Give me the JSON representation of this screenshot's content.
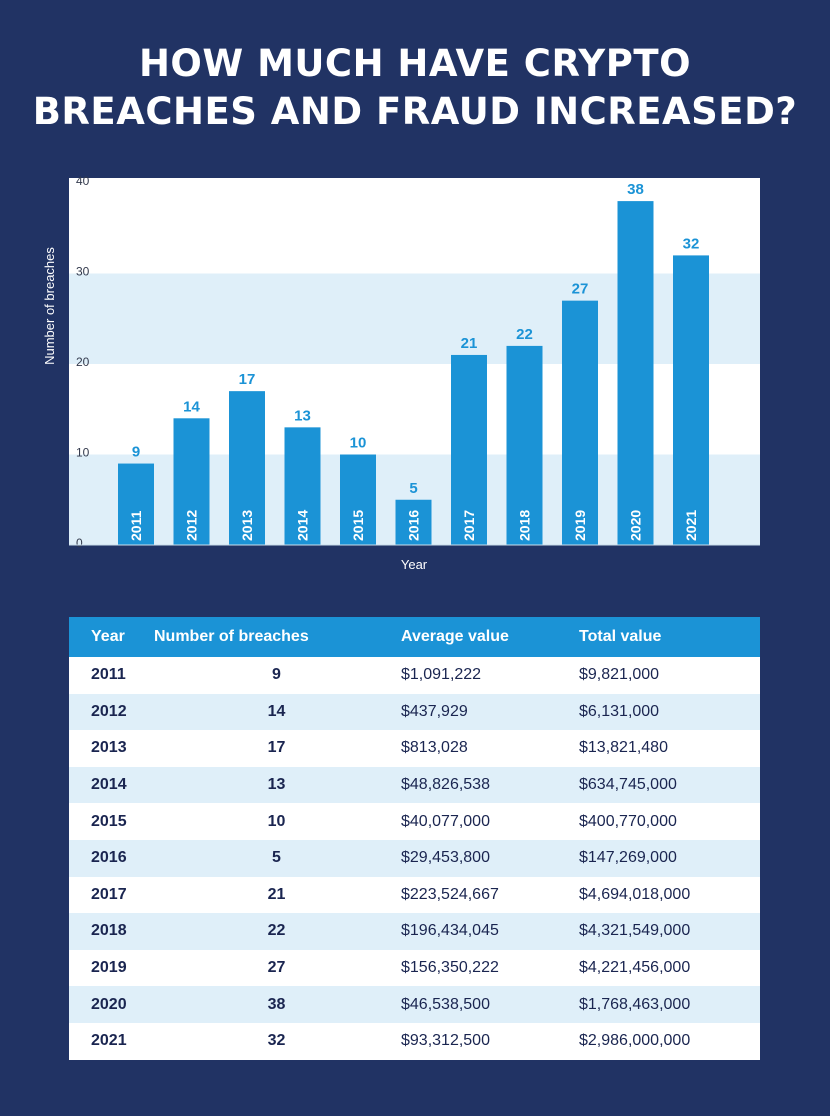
{
  "title_lines": [
    "HOW MUCH HAVE CRYPTO",
    "BREACHES AND FRAUD INCREASED?"
  ],
  "colors": {
    "background": "#213364",
    "bar": "#1b93d6",
    "band": "#dfeff9",
    "label": "#1b93d6"
  },
  "chart_data": {
    "type": "bar",
    "categories": [
      "2011",
      "2012",
      "2013",
      "2014",
      "2015",
      "2016",
      "2017",
      "2018",
      "2019",
      "2020",
      "2021"
    ],
    "values": [
      9,
      14,
      17,
      13,
      10,
      5,
      21,
      22,
      27,
      38,
      32
    ],
    "xlabel": "Year",
    "ylabel": "Number of breaches",
    "ylim": [
      0,
      40
    ],
    "yticks": [
      0,
      10,
      20,
      30,
      40
    ],
    "grid": "alternating horizontal bands"
  },
  "table": {
    "headers": [
      "Year",
      "Number of breaches",
      "Average value",
      "Total value"
    ],
    "rows": [
      [
        "2011",
        "9",
        "$1,091,222",
        "$9,821,000"
      ],
      [
        "2012",
        "14",
        "$437,929",
        "$6,131,000"
      ],
      [
        "2013",
        "17",
        "$813,028",
        "$13,821,480"
      ],
      [
        "2014",
        "13",
        "$48,826,538",
        "$634,745,000"
      ],
      [
        "2015",
        "10",
        "$40,077,000",
        "$400,770,000"
      ],
      [
        "2016",
        "5",
        "$29,453,800",
        "$147,269,000"
      ],
      [
        "2017",
        "21",
        "$223,524,667",
        "$4,694,018,000"
      ],
      [
        "2018",
        "22",
        "$196,434,045",
        "$4,321,549,000"
      ],
      [
        "2019",
        "27",
        "$156,350,222",
        "$4,221,456,000"
      ],
      [
        "2020",
        "38",
        "$46,538,500",
        "$1,768,463,000"
      ],
      [
        "2021",
        "32",
        "$93,312,500",
        "$2,986,000,000"
      ]
    ]
  }
}
